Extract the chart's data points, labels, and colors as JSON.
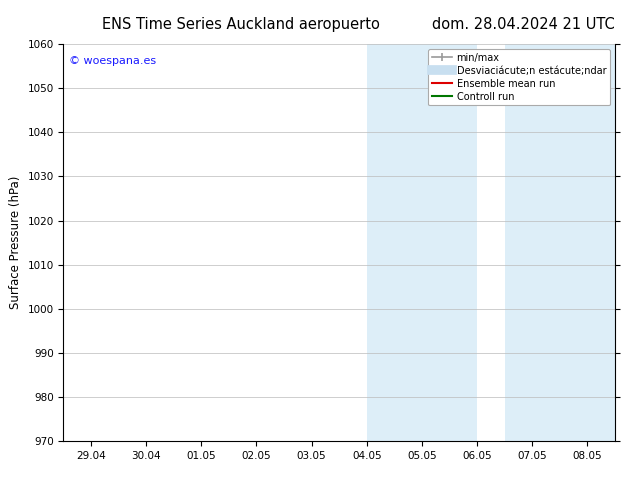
{
  "title_left": "ENS Time Series Auckland aeropuerto",
  "title_right": "dom. 28.04.2024 21 UTC",
  "ylabel": "Surface Pressure (hPa)",
  "ylim": [
    970,
    1060
  ],
  "yticks": [
    970,
    980,
    990,
    1000,
    1010,
    1020,
    1030,
    1040,
    1050,
    1060
  ],
  "xtick_labels": [
    "29.04",
    "30.04",
    "01.05",
    "02.05",
    "03.05",
    "04.05",
    "05.05",
    "06.05",
    "07.05",
    "08.05"
  ],
  "xtick_positions": [
    0,
    1,
    2,
    3,
    4,
    5,
    6,
    7,
    8,
    9
  ],
  "xlim": [
    -0.5,
    9.5
  ],
  "shaded_bands": [
    {
      "xmin": 5.0,
      "xmax": 7.0,
      "color": "#ddeef8"
    },
    {
      "xmin": 7.5,
      "xmax": 9.5,
      "color": "#ddeef8"
    }
  ],
  "watermark_text": "© woespana.es",
  "watermark_color": "#1a1aff",
  "legend_entries": [
    {
      "label": "min/max",
      "color": "#999999",
      "lw": 1.2,
      "linestyle": "-"
    },
    {
      "label": "Desviaciácute;n estácute;ndar",
      "color": "#c8dff0",
      "lw": 7,
      "linestyle": "-"
    },
    {
      "label": "Ensemble mean run",
      "color": "#dd0000",
      "lw": 1.5,
      "linestyle": "-"
    },
    {
      "label": "Controll run",
      "color": "#007700",
      "lw": 1.5,
      "linestyle": "-"
    }
  ],
  "bg_color": "#ffffff",
  "plot_bg_color": "#ffffff",
  "grid_color": "#bbbbbb",
  "title_fontsize": 10.5,
  "tick_fontsize": 7.5,
  "ylabel_fontsize": 8.5
}
